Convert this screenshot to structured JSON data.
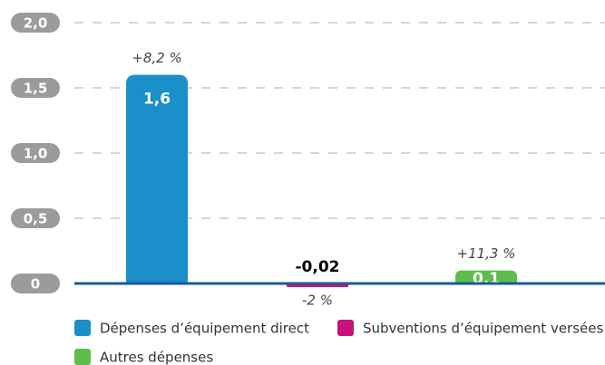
{
  "chart_data": {
    "type": "bar",
    "categories": [
      "Dépenses d’équipement direct",
      "Subventions d’équipement versées",
      "Autres dépenses"
    ],
    "values": [
      1.6,
      -0.02,
      0.1
    ],
    "value_labels": [
      "1,6",
      "-0,02",
      "0,1"
    ],
    "changes": [
      "+8,2 %",
      "-2 %",
      "+11,3 %"
    ],
    "colors": [
      "#1a8fc9",
      "#c6127a",
      "#5bbf4a"
    ],
    "ylim": [
      0,
      2.0
    ],
    "yticks": [
      0,
      {
        "value": 0.5,
        "label": "0,5"
      },
      {
        "value": 1.0,
        "label": "1,0"
      },
      {
        "value": 1.5,
        "label": "1,5"
      },
      {
        "value": 2.0,
        "label": "2,0"
      }
    ],
    "grid": true
  }
}
